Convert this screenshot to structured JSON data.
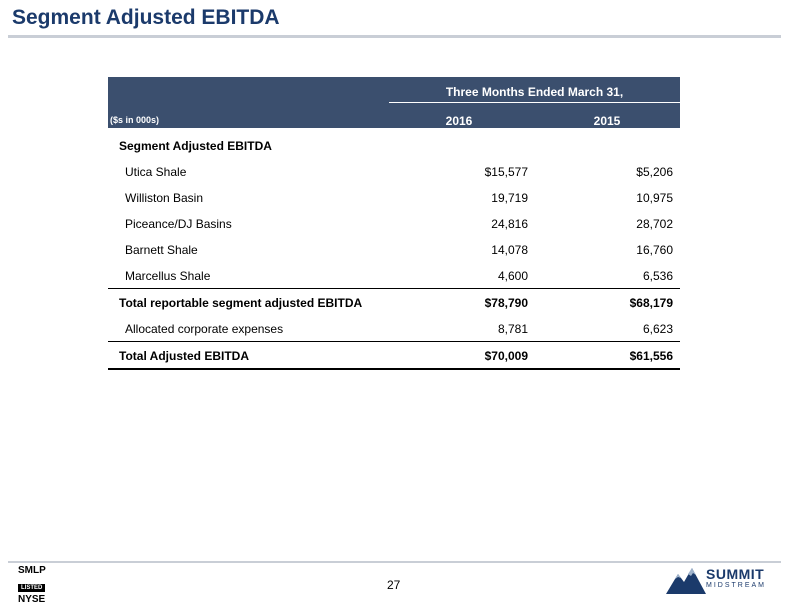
{
  "title": "Segment Adjusted EBITDA",
  "table": {
    "period_header": "Three Months Ended March 31,",
    "units_label": "($s in 000s)",
    "year_1": "2016",
    "year_2": "2015",
    "section_header": "Segment Adjusted EBITDA",
    "segments": [
      {
        "label": "Utica Shale",
        "v2016": "$15,577",
        "v2015": "$5,206"
      },
      {
        "label": "Williston Basin",
        "v2016": "19,719",
        "v2015": "10,975"
      },
      {
        "label": "Piceance/DJ Basins",
        "v2016": "24,816",
        "v2015": "28,702"
      },
      {
        "label": "Barnett Shale",
        "v2016": "14,078",
        "v2015": "16,760"
      },
      {
        "label": "Marcellus Shale",
        "v2016": "4,600",
        "v2015": "6,536"
      }
    ],
    "total_reportable": {
      "label": "Total reportable segment adjusted EBITDA",
      "v2016": "$78,790",
      "v2015": "$68,179"
    },
    "corporate": {
      "label": "Allocated corporate expenses",
      "v2016": "8,781",
      "v2015": "6,623"
    },
    "total_adjusted": {
      "label": "Total Adjusted EBITDA",
      "v2016": "$70,009",
      "v2015": "$61,556"
    }
  },
  "footer": {
    "page_number": "27",
    "ticker": "SMLP",
    "listed": "LISTED",
    "exchange": "NYSE",
    "brand": "SUMMIT",
    "brand_sub": "MIDSTREAM"
  },
  "colors": {
    "title": "#1b3a6b",
    "header_bg": "#3b4f6e"
  }
}
